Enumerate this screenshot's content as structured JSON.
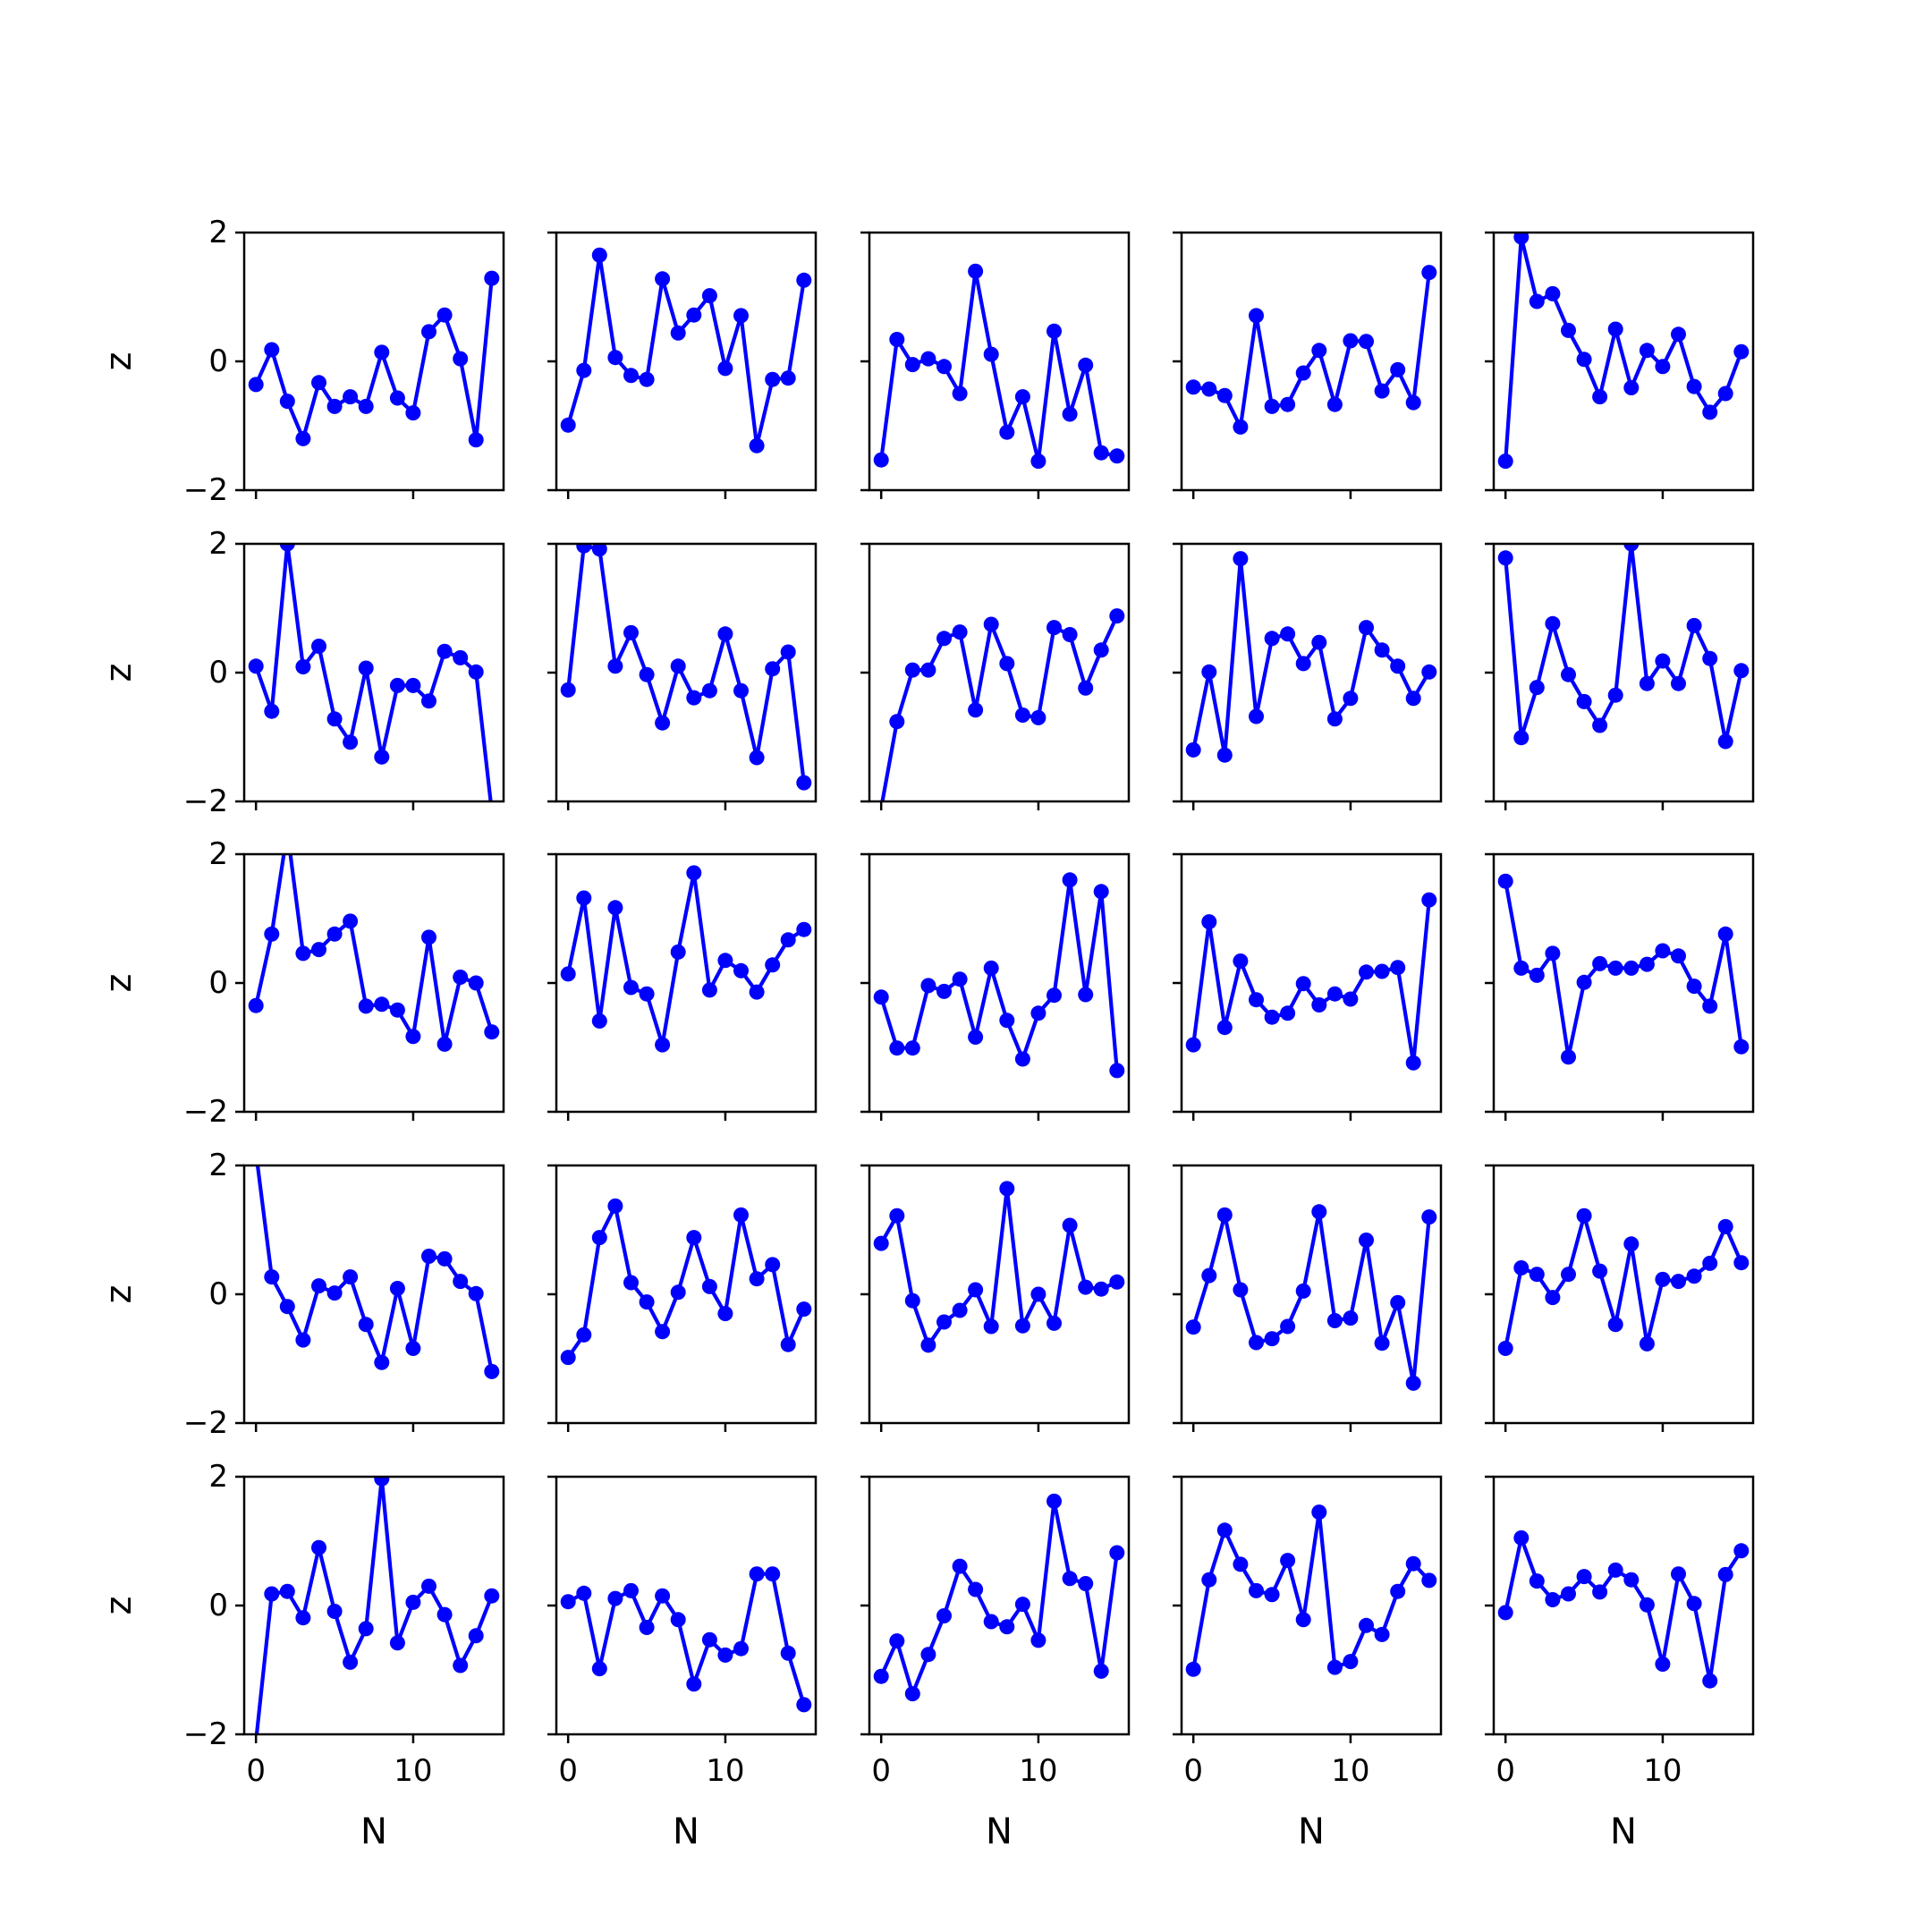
{
  "chart_data": {
    "type": "line",
    "layout": "5x5 grid of small-multiple line charts",
    "xlabel": "N",
    "ylabel": "z",
    "xlim": [
      -0.75,
      15.75
    ],
    "ylim": [
      -2,
      2
    ],
    "x_ticks": [
      0,
      10
    ],
    "x_tick_labels": [
      "0",
      "10"
    ],
    "y_ticks": [
      -2,
      0,
      2
    ],
    "y_tick_labels": [
      "−2",
      "0",
      "2"
    ],
    "grid": false,
    "line_color": "#0000ff",
    "marker": "circle",
    "x": [
      0,
      1,
      2,
      3,
      4,
      5,
      6,
      7,
      8,
      9,
      10,
      11,
      12,
      13,
      14,
      15
    ],
    "panels": [
      [
        -0.36,
        0.18,
        -0.62,
        -1.2,
        -0.33,
        -0.7,
        -0.55,
        -0.7,
        0.14,
        -0.57,
        -0.8,
        0.46,
        0.72,
        0.04,
        -1.22,
        1.29
      ],
      [
        -0.99,
        -0.14,
        1.65,
        0.06,
        -0.22,
        -0.28,
        1.28,
        0.44,
        0.72,
        1.02,
        -0.11,
        0.71,
        -1.31,
        -0.28,
        -0.26,
        1.26
      ],
      [
        -1.53,
        0.34,
        -0.05,
        0.04,
        -0.08,
        -0.5,
        1.4,
        0.11,
        -1.1,
        -0.55,
        -1.55,
        0.47,
        -0.82,
        -0.06,
        -1.42,
        -1.47
      ],
      [
        -0.4,
        -0.43,
        -0.53,
        -1.02,
        0.71,
        -0.7,
        -0.67,
        -0.18,
        0.17,
        -0.67,
        0.32,
        0.31,
        -0.46,
        -0.13,
        -0.64,
        1.38
      ],
      [
        -1.55,
        1.93,
        0.93,
        1.05,
        0.48,
        0.03,
        -0.55,
        0.5,
        -0.41,
        0.17,
        -0.08,
        0.42,
        -0.39,
        -0.79,
        -0.5,
        0.15
      ],
      [
        0.1,
        -0.6,
        2.0,
        0.09,
        0.41,
        -0.72,
        -1.08,
        0.07,
        -1.31,
        -0.2,
        -0.2,
        -0.44,
        0.33,
        0.23,
        0.01,
        -2.15
      ],
      [
        -0.27,
        1.97,
        1.92,
        0.1,
        0.62,
        -0.03,
        -0.78,
        0.1,
        -0.39,
        -0.28,
        0.6,
        -0.28,
        -1.32,
        0.06,
        0.32,
        -1.71
      ],
      [
        -2.1,
        -0.76,
        0.04,
        0.04,
        0.53,
        0.63,
        -0.58,
        0.75,
        0.14,
        -0.66,
        -0.7,
        0.7,
        0.59,
        -0.24,
        0.35,
        0.88
      ],
      [
        -1.2,
        0.01,
        -1.28,
        1.77,
        -0.68,
        0.53,
        0.6,
        0.14,
        0.47,
        -0.72,
        -0.4,
        0.7,
        0.35,
        0.1,
        -0.4,
        0.01
      ],
      [
        1.78,
        -1.01,
        -0.23,
        0.76,
        -0.03,
        -0.45,
        -0.82,
        -0.35,
        2.0,
        -0.17,
        0.18,
        -0.17,
        0.73,
        0.22,
        -1.07,
        0.03
      ],
      [
        -0.35,
        0.76,
        2.36,
        0.46,
        0.52,
        0.76,
        0.96,
        -0.36,
        -0.33,
        -0.42,
        -0.83,
        0.71,
        -0.95,
        0.09,
        0.0,
        -0.76
      ],
      [
        0.14,
        1.32,
        -0.59,
        1.17,
        -0.07,
        -0.17,
        -0.96,
        0.48,
        1.71,
        -0.11,
        0.35,
        0.19,
        -0.14,
        0.28,
        0.67,
        0.83
      ],
      [
        -0.22,
        -1.01,
        -1.01,
        -0.04,
        -0.13,
        0.06,
        -0.84,
        0.23,
        -0.58,
        -1.18,
        -0.47,
        -0.19,
        1.6,
        -0.18,
        1.42,
        -1.36
      ],
      [
        -0.96,
        0.95,
        -0.69,
        0.34,
        -0.26,
        -0.53,
        -0.47,
        -0.01,
        -0.34,
        -0.17,
        -0.25,
        0.17,
        0.18,
        0.24,
        -1.24,
        1.29
      ],
      [
        1.58,
        0.23,
        0.12,
        0.46,
        -1.15,
        0.01,
        0.3,
        0.23,
        0.23,
        0.29,
        0.5,
        0.42,
        -0.05,
        -0.36,
        0.76,
        -0.99
      ],
      [
        2.2,
        0.27,
        -0.19,
        -0.71,
        0.13,
        0.02,
        0.27,
        -0.47,
        -1.06,
        0.09,
        -0.84,
        0.59,
        0.55,
        0.2,
        0.01,
        -1.2
      ],
      [
        -0.98,
        -0.63,
        0.88,
        1.37,
        0.18,
        -0.12,
        -0.58,
        0.03,
        0.88,
        0.12,
        -0.3,
        1.23,
        0.24,
        0.46,
        -0.78,
        -0.23
      ],
      [
        0.79,
        1.22,
        -0.1,
        -0.79,
        -0.43,
        -0.25,
        0.07,
        -0.5,
        1.64,
        -0.49,
        0.0,
        -0.45,
        1.07,
        0.11,
        0.08,
        0.19
      ],
      [
        -0.51,
        0.29,
        1.23,
        0.07,
        -0.75,
        -0.69,
        -0.5,
        0.05,
        1.28,
        -0.41,
        -0.37,
        0.84,
        -0.76,
        -0.13,
        -1.38,
        1.2
      ],
      [
        -0.84,
        0.41,
        0.31,
        -0.05,
        0.31,
        1.22,
        0.36,
        -0.47,
        0.78,
        -0.77,
        0.23,
        0.2,
        0.28,
        0.48,
        1.05,
        0.49
      ],
      [
        -2.1,
        0.18,
        0.22,
        -0.19,
        0.9,
        -0.09,
        -0.88,
        -0.36,
        1.97,
        -0.58,
        0.05,
        0.3,
        -0.14,
        -0.93,
        -0.47,
        0.15
      ],
      [
        0.06,
        0.19,
        -0.98,
        0.11,
        0.23,
        -0.34,
        0.15,
        -0.22,
        -1.22,
        -0.53,
        -0.77,
        -0.67,
        0.49,
        0.49,
        -0.74,
        -1.54
      ],
      [
        -1.1,
        -0.55,
        -1.37,
        -0.76,
        -0.16,
        0.61,
        0.25,
        -0.25,
        -0.33,
        0.02,
        -0.54,
        1.62,
        0.42,
        0.34,
        -1.02,
        0.82
      ],
      [
        -0.99,
        0.4,
        1.17,
        0.64,
        0.23,
        0.17,
        0.7,
        -0.22,
        1.45,
        -0.96,
        -0.87,
        -0.31,
        -0.45,
        0.22,
        0.65,
        0.39
      ],
      [
        -0.11,
        1.05,
        0.38,
        0.09,
        0.18,
        0.45,
        0.21,
        0.55,
        0.4,
        0.01,
        -0.91,
        0.49,
        0.03,
        -1.17,
        0.48,
        0.85
      ]
    ]
  }
}
